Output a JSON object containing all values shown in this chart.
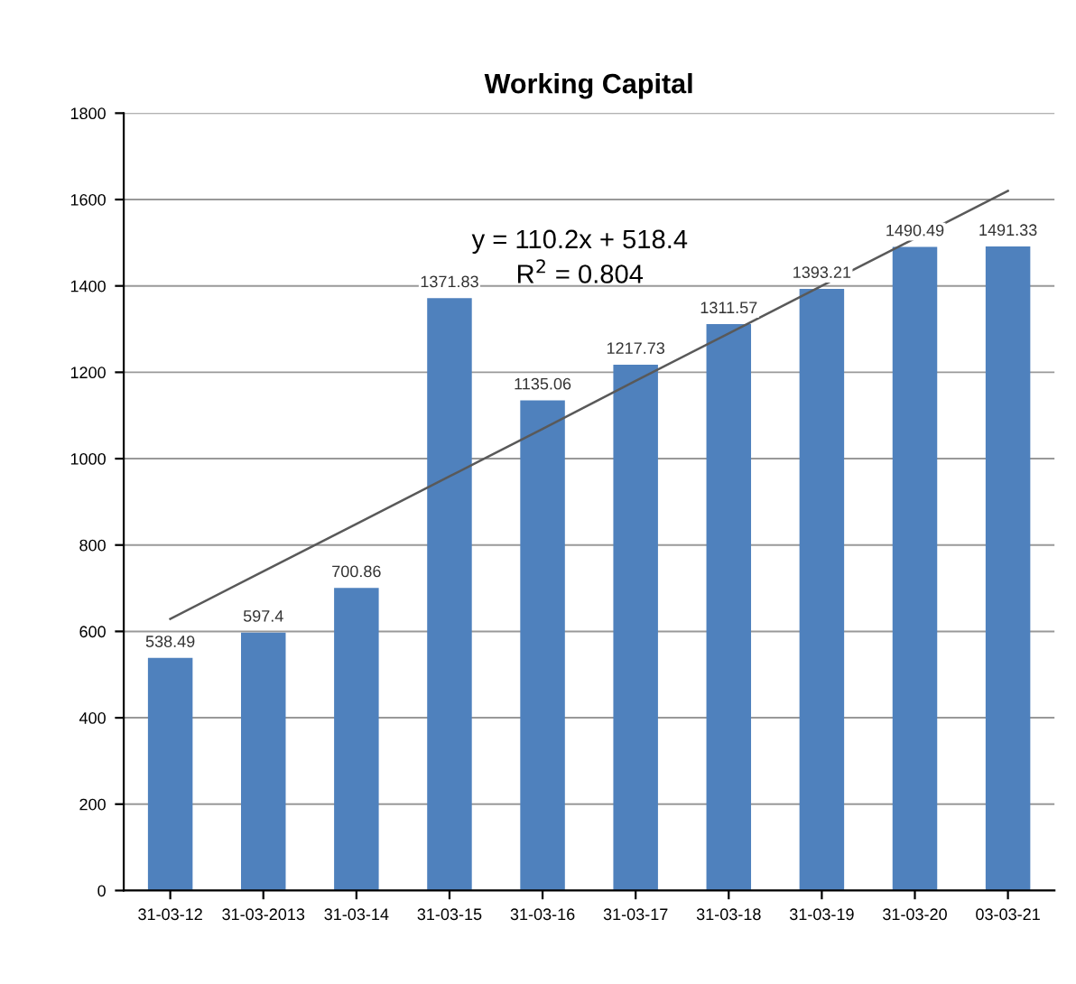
{
  "chart_data": {
    "type": "bar",
    "title": "Working Capital",
    "categories": [
      "31-03-12",
      "31-03-2013",
      "31-03-14",
      "31-03-15",
      "31-03-16",
      "31-03-17",
      "31-03-18",
      "31-03-19",
      "31-03-20",
      "03-03-21"
    ],
    "series": [
      {
        "color": "#4f81bd",
        "values": [
          538.49,
          597.4,
          700.86,
          1371.83,
          1135.06,
          1217.73,
          1311.57,
          1393.21,
          1490.49,
          1491.33
        ],
        "data_labels": true
      },
      {
        "type": "line",
        "color": "#595959",
        "values": [
          629,
          739,
          849,
          959,
          1069,
          1180,
          1290,
          1400,
          1510,
          1620
        ]
      }
    ],
    "annotations": [
      {
        "text": "y = 110.2x + 518.4"
      },
      {
        "text": "R$^{2}$ = 0.804"
      }
    ],
    "ylim": [
      0,
      1800
    ],
    "yticks": [
      0,
      200,
      400,
      600,
      800,
      1000,
      1200,
      1400,
      1600,
      1800
    ],
    "grid": "y",
    "legend": false
  }
}
